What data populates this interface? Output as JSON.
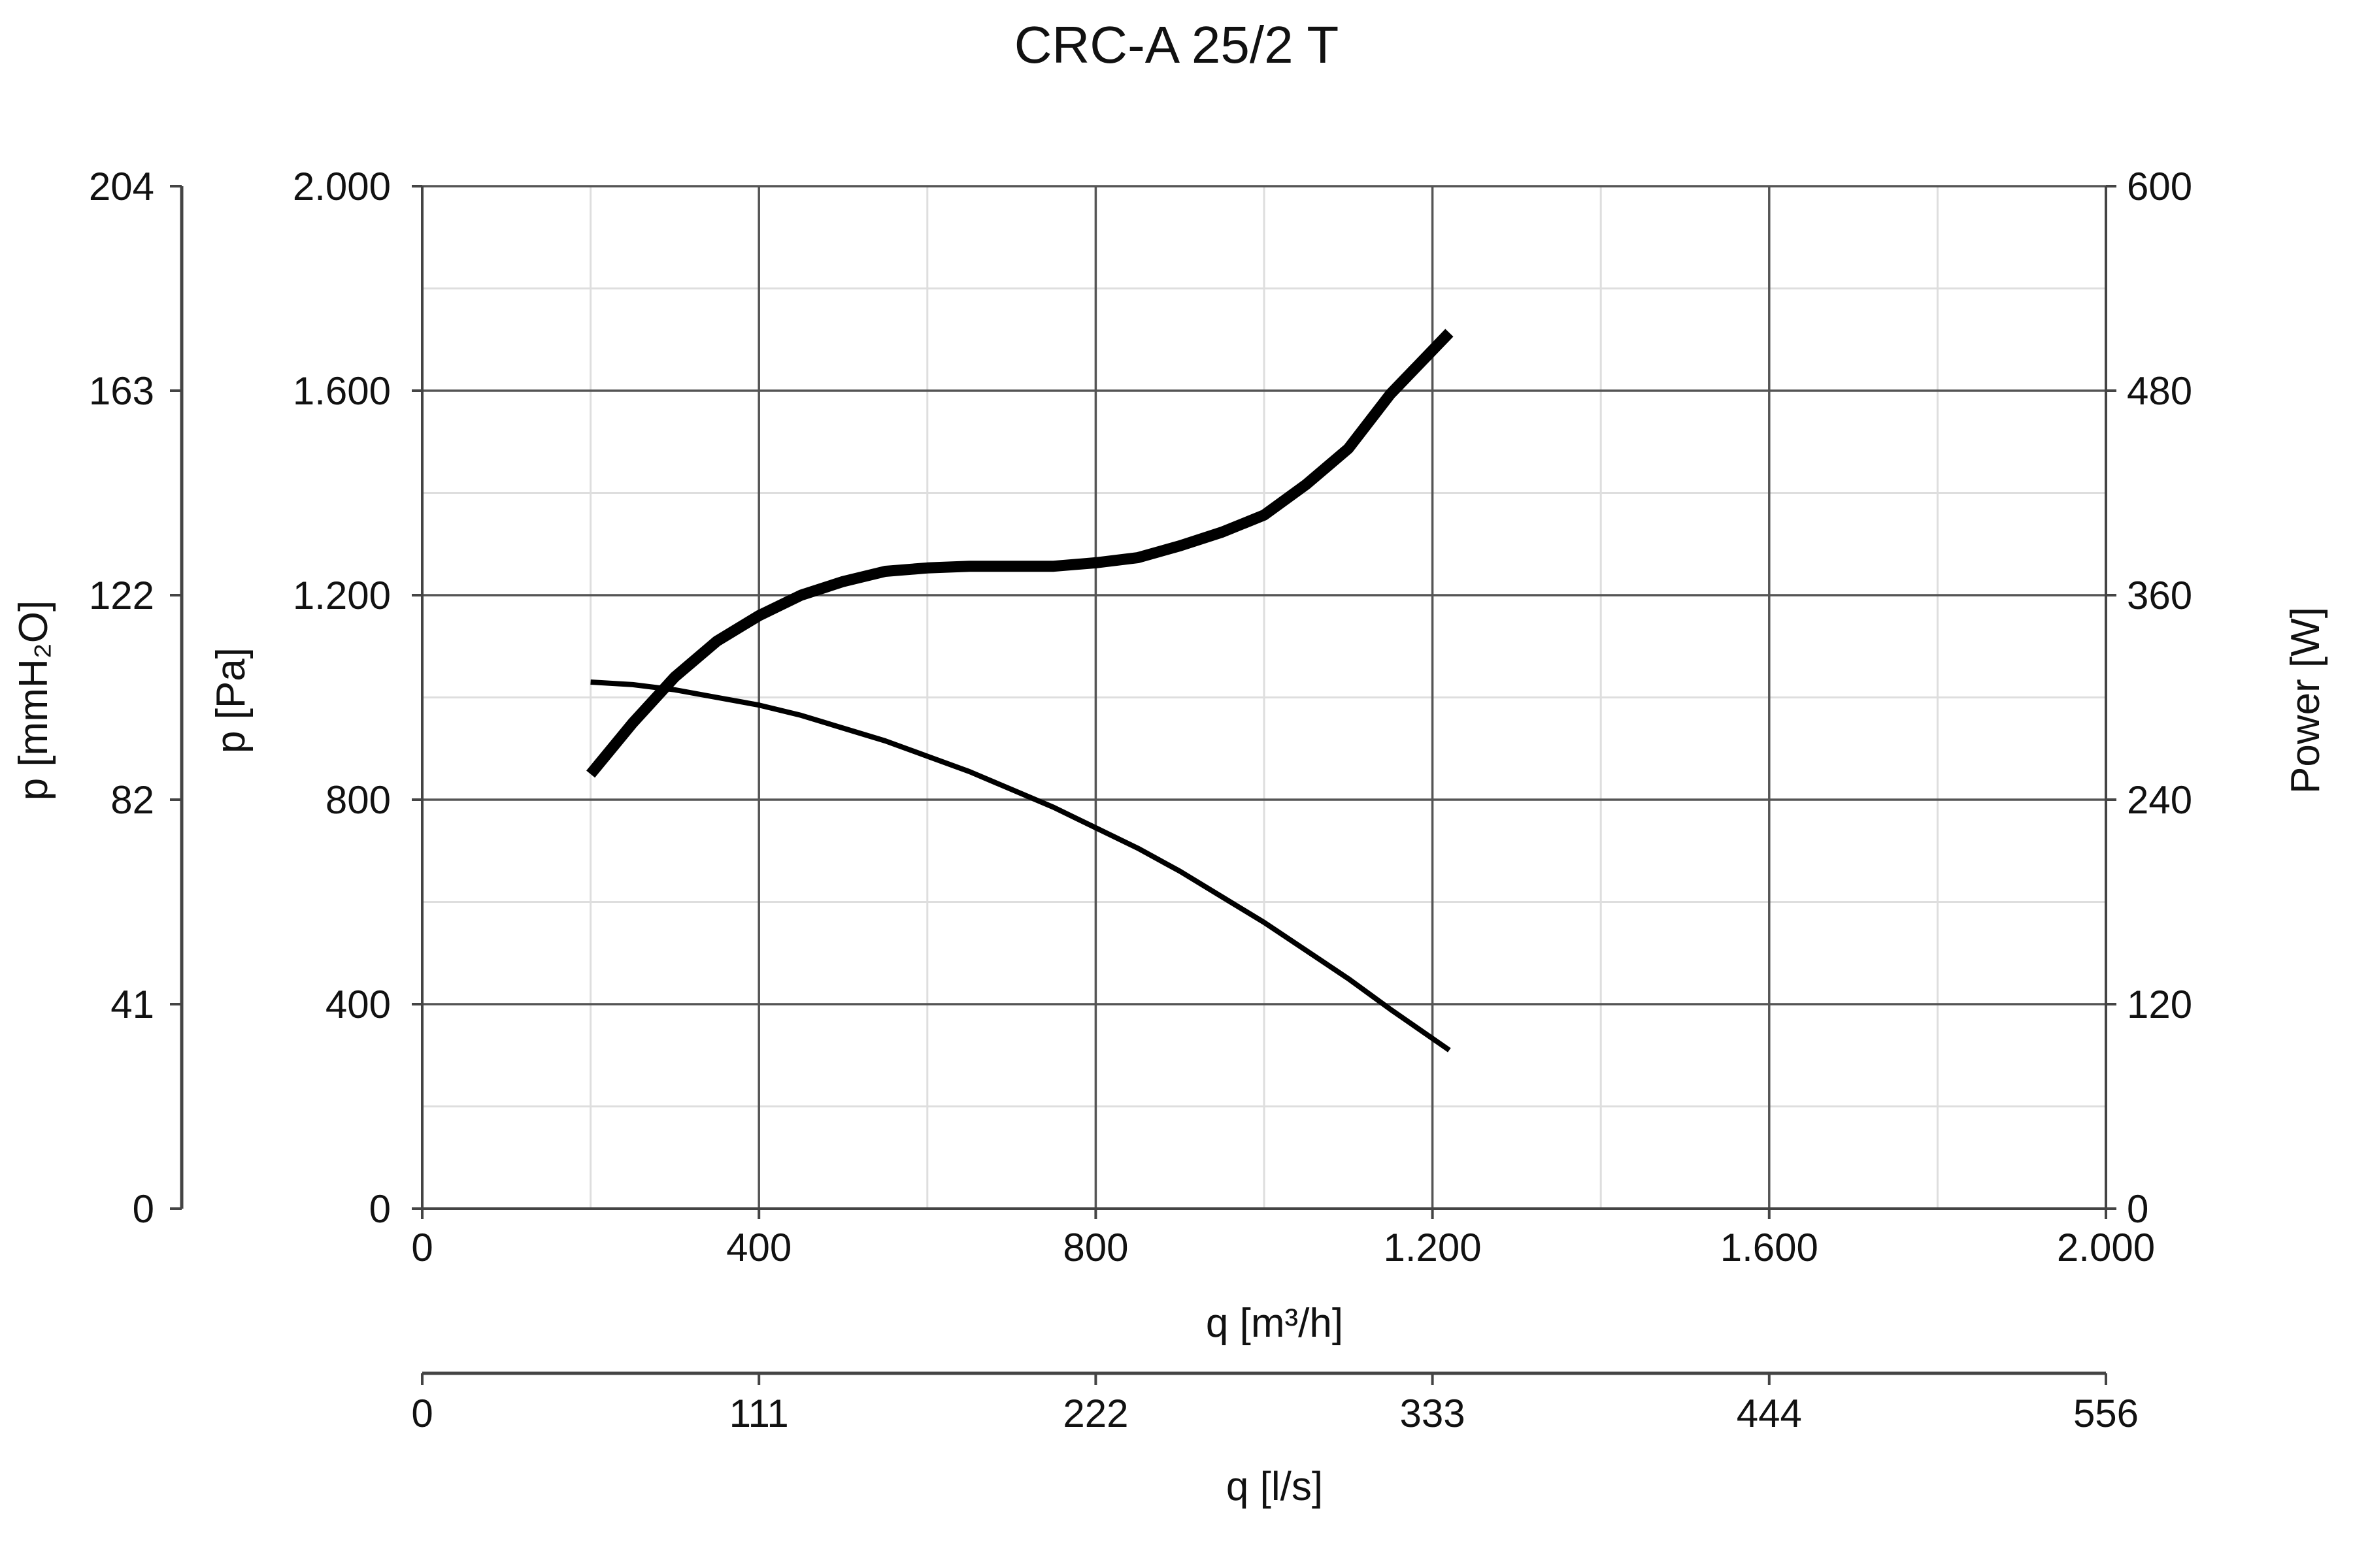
{
  "chart_data": {
    "type": "line",
    "title": "CRC-A 25/2 T",
    "xlabel": "q [m³/h]",
    "x2label": "q [l/s]",
    "ylabel": "p [Pa]",
    "y2label": "p [mmH₂O]",
    "y3label": "Power [W]",
    "xlim": [
      0,
      2000
    ],
    "ylim": [
      0,
      2000
    ],
    "powerlim": [
      0,
      600
    ],
    "x_ticks": [
      0,
      400,
      800,
      1200,
      1600,
      2000
    ],
    "x_tick_labels": [
      "0",
      "400",
      "800",
      "1.200",
      "1.600",
      "2.000"
    ],
    "x2_tick_labels": [
      "0",
      "111",
      "222",
      "333",
      "444",
      "556"
    ],
    "y_ticks": [
      0,
      400,
      800,
      1200,
      1600,
      2000
    ],
    "y_tick_labels": [
      "0",
      "400",
      "800",
      "1.200",
      "1.600",
      "2.000"
    ],
    "y2_tick_labels": [
      "0",
      "41",
      "82",
      "122",
      "163",
      "204"
    ],
    "power_ticks": [
      0,
      120,
      240,
      360,
      480,
      600
    ],
    "power_tick_labels": [
      "0",
      "120",
      "240",
      "360",
      "480",
      "600"
    ],
    "grid": true,
    "series": [
      {
        "axis": "pressure",
        "x": [
          200,
          250,
          300,
          350,
          400,
          450,
          500,
          550,
          600,
          650,
          700,
          750,
          800,
          850,
          900,
          950,
          1000,
          1050,
          1100,
          1150,
          1220
        ],
        "y": [
          1030,
          1025,
          1015,
          1000,
          985,
          965,
          940,
          915,
          885,
          855,
          820,
          785,
          745,
          705,
          660,
          610,
          560,
          505,
          450,
          390,
          310
        ]
      },
      {
        "axis": "power",
        "x": [
          200,
          250,
          300,
          350,
          400,
          450,
          500,
          550,
          600,
          650,
          700,
          750,
          800,
          850,
          900,
          950,
          1000,
          1050,
          1100,
          1150,
          1220
        ],
        "y": [
          255,
          285,
          312,
          333,
          348,
          360,
          368,
          374,
          376,
          377,
          377,
          377,
          379,
          382,
          389,
          397,
          407,
          425,
          446,
          478,
          514
        ]
      }
    ]
  }
}
